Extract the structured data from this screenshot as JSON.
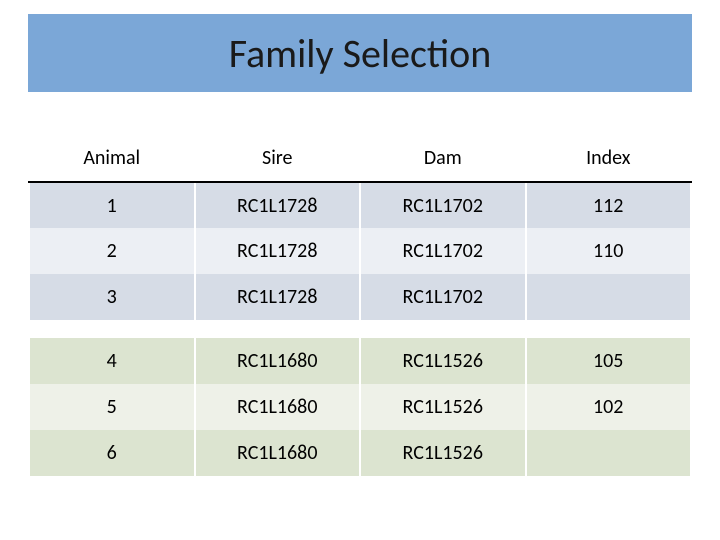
{
  "title": "Family Selection",
  "title_bar_color": "#7ba7d7",
  "table": {
    "columns": [
      "Animal",
      "Sire",
      "Dam",
      "Index"
    ],
    "header_bg": "#ffffff",
    "header_fontsize": 20,
    "cell_fontsize": 20,
    "group1_colors": {
      "odd": "#d6dce6",
      "even": "#eceff4"
    },
    "group2_colors": {
      "odd": "#dce4d0",
      "even": "#eef1e8"
    },
    "group1_rows": [
      {
        "animal": "1",
        "sire": "RC1L1728",
        "dam": "RC1L1702",
        "index": "112"
      },
      {
        "animal": "2",
        "sire": "RC1L1728",
        "dam": "RC1L1702",
        "index": "110"
      },
      {
        "animal": "3",
        "sire": "RC1L1728",
        "dam": "RC1L1702",
        "index": ""
      }
    ],
    "group2_rows": [
      {
        "animal": "4",
        "sire": "RC1L1680",
        "dam": "RC1L1526",
        "index": "105"
      },
      {
        "animal": "5",
        "sire": "RC1L1680",
        "dam": "RC1L1526",
        "index": "102"
      },
      {
        "animal": "6",
        "sire": "RC1L1680",
        "dam": "RC1L1526",
        "index": ""
      }
    ]
  }
}
